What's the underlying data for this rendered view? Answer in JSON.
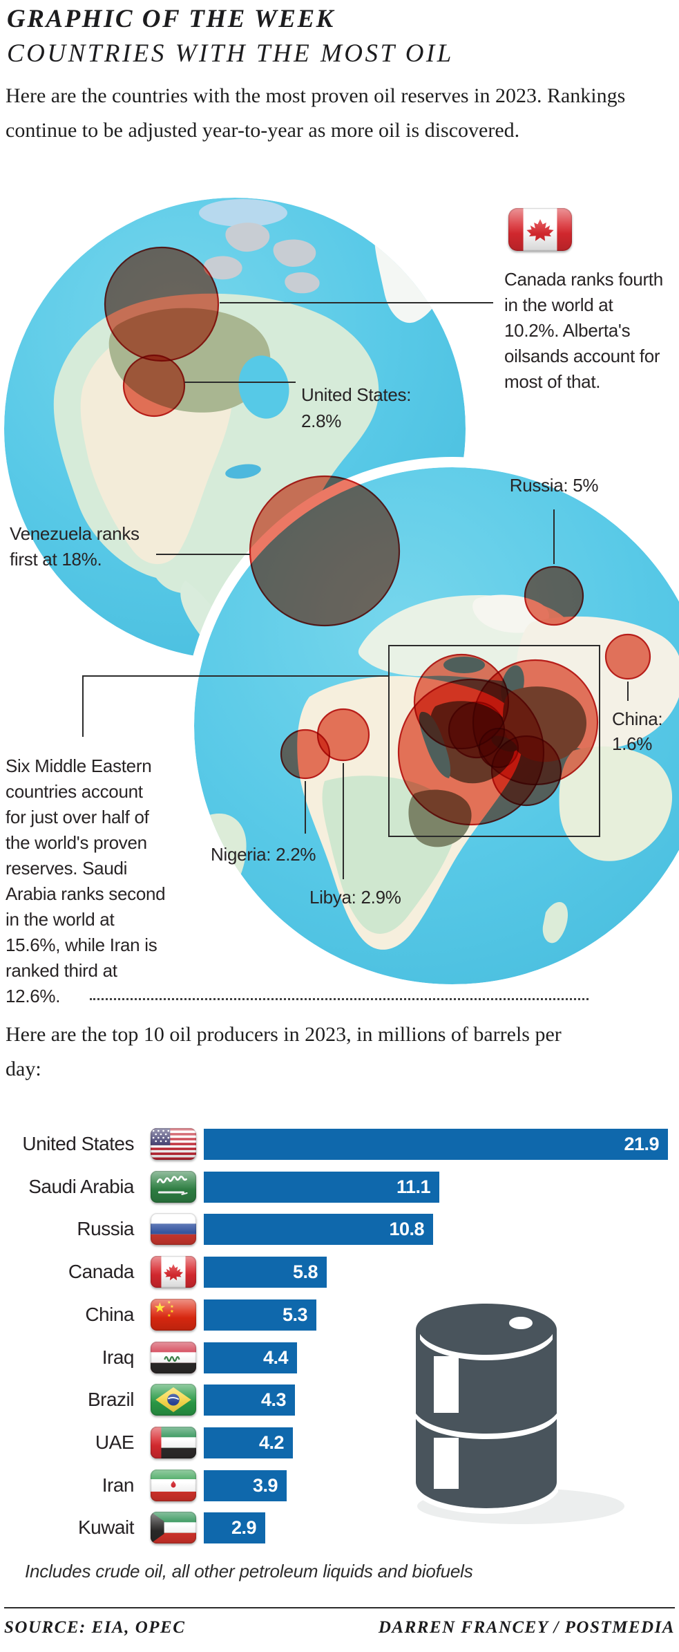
{
  "page": {
    "background": "#ffffff",
    "text_color": "#231f20"
  },
  "header": {
    "kicker": "GRAPHIC OF THE WEEK",
    "title": "COUNTRIES WITH THE MOST OIL",
    "intro": "Here are the countries with the most proven oil reserves in 2023. Rankings continue to be adjusted year-to-year as more oil is discovered."
  },
  "map": {
    "flag_icon": "canada-flag",
    "annotations": {
      "canada": "Canada ranks fourth in the world at 10.2%. Alberta's oilsands account for most of that.",
      "united_states": "United States: 2.8%",
      "venezuela": "Venezuela ranks first at 18%.",
      "russia": "Russia: 5%",
      "china": "China: 1.6%",
      "nigeria": "Nigeria: 2.2%",
      "libya": "Libya: 2.9%",
      "middle_east": "Six Middle Eastern countries account for just over half of the world's proven reserves. Saudi Arabia ranks second in the world at 15.6%, while Iran is ranked third at 12.6%."
    }
  },
  "producers": {
    "heading": "Here are the top 10 oil producers in 2023, in millions of barrels per day:",
    "footnote": "Includes crude oil, all other petroleum liquids and biofuels"
  },
  "chart_data": [
    {
      "type": "bubble-map",
      "title": "Share of world proven oil reserves, 2023 (%)",
      "points": [
        {
          "country": "Venezuela",
          "pct": 18,
          "rank": 1
        },
        {
          "country": "Saudi Arabia",
          "pct": 15.6,
          "rank": 2
        },
        {
          "country": "Iran",
          "pct": 12.6,
          "rank": 3
        },
        {
          "country": "Canada",
          "pct": 10.2,
          "rank": 4
        },
        {
          "country": "Russia",
          "pct": 5
        },
        {
          "country": "Libya",
          "pct": 2.9
        },
        {
          "country": "United States",
          "pct": 2.8
        },
        {
          "country": "Nigeria",
          "pct": 2.2
        },
        {
          "country": "China",
          "pct": 1.6
        }
      ],
      "note": "Six Middle Eastern countries account for just over half of the world's proven reserves.",
      "bubble_fill": "#eb7864",
      "bubble_stroke": "#bf1f1c"
    },
    {
      "type": "bar",
      "orientation": "horizontal",
      "title": "Top 10 oil producers in 2023, in millions of barrels per day",
      "categories": [
        "United States",
        "Saudi Arabia",
        "Russia",
        "Canada",
        "China",
        "Iraq",
        "Brazil",
        "UAE",
        "Iran",
        "Kuwait"
      ],
      "values": [
        21.9,
        11.1,
        10.8,
        5.8,
        5.3,
        4.4,
        4.3,
        4.2,
        3.9,
        2.9
      ],
      "flag_icons": [
        "us-flag",
        "saudi-arabia-flag",
        "russia-flag",
        "canada-flag",
        "china-flag",
        "iraq-flag",
        "brazil-flag",
        "uae-flag",
        "iran-flag",
        "kuwait-flag"
      ],
      "bar_color": "#0f68ac",
      "value_label_color": "#ffffff",
      "xlim": [
        0,
        22.5
      ],
      "legend": "none",
      "grid": "off"
    }
  ],
  "footer": {
    "source": "SOURCE: EIA, OPEC",
    "credit": "DARREN FRANCEY / POSTMEDIA"
  }
}
